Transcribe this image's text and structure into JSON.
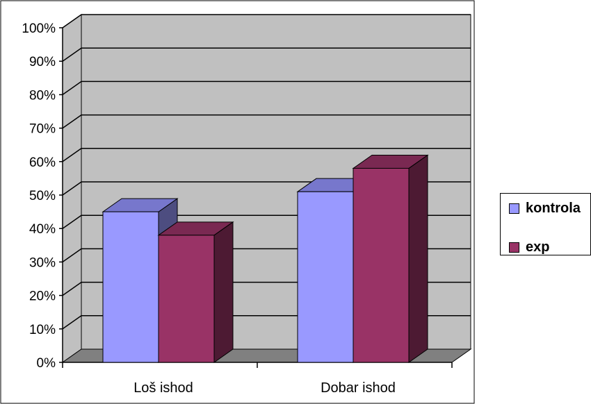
{
  "chart_data": {
    "type": "bar",
    "categories": [
      "Loš ishod",
      "Dobar ishod"
    ],
    "series": [
      {
        "name": "kontrola",
        "values": [
          45,
          51
        ]
      },
      {
        "name": "exp",
        "values": [
          38,
          58
        ]
      }
    ],
    "y_ticks": [
      "0%",
      "10%",
      "20%",
      "30%",
      "40%",
      "50%",
      "60%",
      "70%",
      "80%",
      "90%",
      "100%"
    ],
    "ylim": [
      0,
      100
    ],
    "y_unit": "%",
    "grid": true,
    "legend_position": "right",
    "three_d": true
  },
  "colors": {
    "kontrola_front": "#9999ff",
    "kontrola_top": "#7777cc",
    "kontrola_side": "#4d4d80",
    "exp_front": "#993366",
    "exp_top": "#7a2952",
    "exp_side": "#4d1a33",
    "wall": "#c0c0c0",
    "floor": "#808080"
  }
}
